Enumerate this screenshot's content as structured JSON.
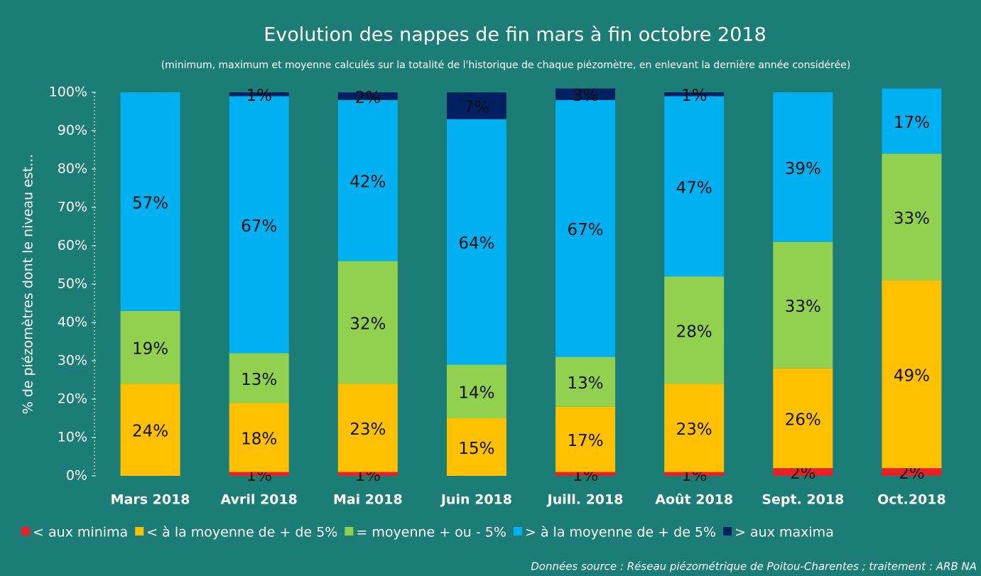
{
  "chart_data": {
    "type": "stacked_bar",
    "title": "Evolution des nappes de fin mars à fin octobre 2018",
    "subtitle": "(minimum, maximum et moyenne  calculés sur la totalité de l'historique de chaque piézomètre, en enlevant la dernière année considérée)",
    "y_label": "% de piézomètres dont le niveau est...",
    "source": "Données source : Réseau piézométrique de Poitou-Charentes ; traitement : ARB NA",
    "categories": [
      "Mars 2018",
      "Avril 2018",
      "Mai 2018",
      "Juin 2018",
      "Juill. 2018",
      "Août 2018",
      "Sept. 2018",
      "Oct.2018"
    ],
    "series": [
      {
        "name": "< aux minima",
        "color": "#e8202a",
        "values": [
          0,
          1,
          1,
          0,
          1,
          1,
          2,
          2
        ],
        "value_labels": [
          null,
          "1%",
          "1%",
          null,
          "1%",
          "1%",
          "2%",
          "2%"
        ]
      },
      {
        "name": "< à la moyenne de + de 5%",
        "color": "#ffc000",
        "values": [
          24,
          18,
          23,
          15,
          17,
          23,
          26,
          49
        ],
        "value_labels": [
          "24%",
          "18%",
          "23%",
          "15%",
          "17%",
          "23%",
          "26%",
          "49%"
        ]
      },
      {
        "name": "= moyenne + ou - 5%",
        "color": "#92d050",
        "values": [
          19,
          13,
          32,
          14,
          13,
          28,
          33,
          33
        ],
        "value_labels": [
          "19%",
          "13%",
          "32%",
          "14%",
          "13%",
          "28%",
          "33%",
          "33%"
        ]
      },
      {
        "name": "> à la moyenne de + de 5%",
        "color": "#00b0f0",
        "values": [
          57,
          67,
          42,
          64,
          67,
          47,
          39,
          17
        ],
        "value_labels": [
          "57%",
          "67%",
          "42%",
          "64%",
          "67%",
          "47%",
          "39%",
          "17%"
        ]
      },
      {
        "name": "> aux maxima",
        "color": "#002060",
        "values": [
          0,
          1,
          2,
          7,
          3,
          1,
          0,
          0
        ],
        "value_labels": [
          null,
          "1%",
          "2%",
          "7%",
          "3%",
          "1%",
          null,
          null
        ]
      }
    ],
    "ylim": [
      0,
      100
    ],
    "yticks": [
      {
        "value": 0,
        "label": "0%"
      },
      {
        "value": 10,
        "label": "10%"
      },
      {
        "value": 20,
        "label": "20%"
      },
      {
        "value": 30,
        "label": "30%"
      },
      {
        "value": 40,
        "label": "40%"
      },
      {
        "value": 50,
        "label": "50%"
      },
      {
        "value": 60,
        "label": "60%"
      },
      {
        "value": 70,
        "label": "70%"
      },
      {
        "value": 80,
        "label": "80%"
      },
      {
        "value": 90,
        "label": "90%"
      },
      {
        "value": 100,
        "label": "100%"
      }
    ]
  }
}
